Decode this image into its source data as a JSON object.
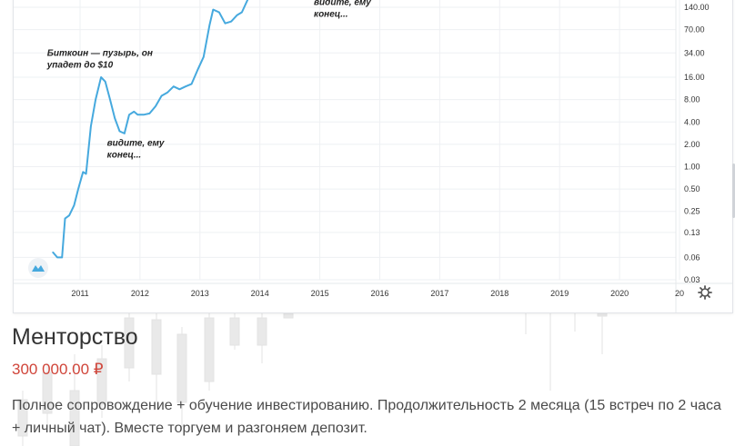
{
  "chart_data": {
    "type": "line",
    "title": "",
    "xlabel": "",
    "ylabel": "",
    "y_scale": "log",
    "ylim": [
      0.03,
      250
    ],
    "grid": true,
    "y_ticks": [
      "140.00",
      "70.00",
      "34.00",
      "16.00",
      "8.00",
      "4.00",
      "2.00",
      "1.00",
      "0.50",
      "0.25",
      "0.13",
      "0.06",
      "0.03"
    ],
    "x_ticks": [
      "2011",
      "2012",
      "2013",
      "2014",
      "2015",
      "2016",
      "2017",
      "2018",
      "2019",
      "2020",
      "20"
    ],
    "series": [
      {
        "color": "#46a9de",
        "x": [
          2010.55,
          2010.62,
          2010.7,
          2010.75,
          2010.82,
          2010.9,
          2010.97,
          2011.05,
          2011.1,
          2011.18,
          2011.26,
          2011.35,
          2011.42,
          2011.5,
          2011.58,
          2011.66,
          2011.74,
          2011.82,
          2011.9,
          2011.96,
          2012.06,
          2012.16,
          2012.26,
          2012.36,
          2012.46,
          2012.56,
          2012.66,
          2012.76,
          2012.86,
          2012.96,
          2013.06,
          2013.16,
          2013.22,
          2013.32,
          2013.42,
          2013.52,
          2013.62,
          2013.7,
          2013.8
        ],
        "y": [
          0.07,
          0.06,
          0.06,
          0.2,
          0.22,
          0.3,
          0.5,
          0.85,
          0.8,
          3.5,
          8,
          16,
          14,
          8,
          4.5,
          3,
          2.8,
          5,
          5.5,
          5,
          5,
          5.2,
          6.5,
          9,
          10,
          12,
          11,
          12,
          13,
          20,
          30,
          80,
          130,
          120,
          85,
          90,
          110,
          120,
          180
        ]
      }
    ],
    "annotations": [
      {
        "lines": [
          "Биткоин — пузырь, он",
          "упадет до $10"
        ],
        "x": 2010.45,
        "y": 31
      },
      {
        "lines": [
          "видите, ему",
          "конец..."
        ],
        "x": 2011.45,
        "y": 1.9
      },
      {
        "lines": [
          "видите, ему",
          "конец..."
        ],
        "x": 2014.9,
        "y": 150
      }
    ]
  },
  "icons": {
    "settings": "gear-icon",
    "logo": "tradingview-logo-icon"
  },
  "product": {
    "title": "Менторство",
    "price": "300 000.00 ₽",
    "description": "Полное сопровождение + обучение инвестированию. Продолжительность 2 месяца (15 встреч по 2 часа + личный чат). Вместе торгуем и разгоняем депозит."
  }
}
